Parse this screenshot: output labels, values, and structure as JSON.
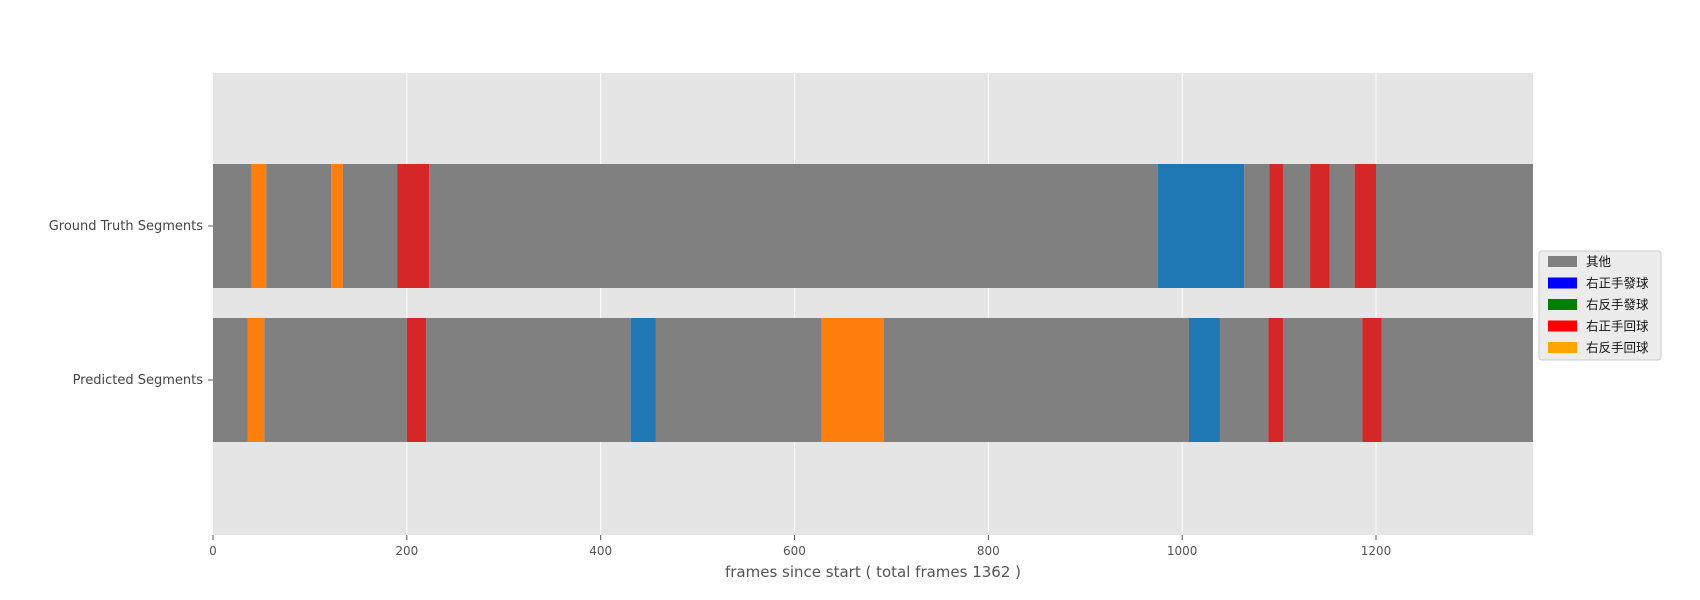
{
  "chart_data": {
    "type": "bar",
    "subtype": "broken-barh-timeline",
    "xlabel": "frames since start ( total frames 1362 )",
    "ylabel": "",
    "xlim": [
      0,
      1362
    ],
    "x_ticks": [
      0,
      200,
      400,
      600,
      800,
      1000,
      1200
    ],
    "grid": true,
    "legend_position": "center-right outside",
    "background_color": "#e5e5e5",
    "rows": [
      {
        "label": "Ground Truth Segments",
        "segments": [
          {
            "start": 0,
            "end": 40,
            "class": "其他"
          },
          {
            "start": 40,
            "end": 55,
            "class": "右反手回球"
          },
          {
            "start": 55,
            "end": 122,
            "class": "其他"
          },
          {
            "start": 122,
            "end": 134,
            "class": "右反手回球"
          },
          {
            "start": 134,
            "end": 190,
            "class": "其他"
          },
          {
            "start": 190,
            "end": 223,
            "class": "右正手回球"
          },
          {
            "start": 223,
            "end": 975,
            "class": "其他"
          },
          {
            "start": 975,
            "end": 1064,
            "class": "右正手發球"
          },
          {
            "start": 1064,
            "end": 1090,
            "class": "其他"
          },
          {
            "start": 1090,
            "end": 1104,
            "class": "右正手回球"
          },
          {
            "start": 1104,
            "end": 1132,
            "class": "其他"
          },
          {
            "start": 1132,
            "end": 1152,
            "class": "右正手回球"
          },
          {
            "start": 1152,
            "end": 1178,
            "class": "其他"
          },
          {
            "start": 1178,
            "end": 1200,
            "class": "右正手回球"
          },
          {
            "start": 1200,
            "end": 1362,
            "class": "其他"
          }
        ]
      },
      {
        "label": "Predicted Segments",
        "segments": [
          {
            "start": 0,
            "end": 36,
            "class": "其他"
          },
          {
            "start": 36,
            "end": 53,
            "class": "右反手回球"
          },
          {
            "start": 53,
            "end": 200,
            "class": "其他"
          },
          {
            "start": 200,
            "end": 220,
            "class": "右正手回球"
          },
          {
            "start": 220,
            "end": 431,
            "class": "其他"
          },
          {
            "start": 431,
            "end": 457,
            "class": "右正手發球"
          },
          {
            "start": 457,
            "end": 628,
            "class": "其他"
          },
          {
            "start": 628,
            "end": 692,
            "class": "右反手回球"
          },
          {
            "start": 692,
            "end": 1007,
            "class": "其他"
          },
          {
            "start": 1007,
            "end": 1039,
            "class": "右正手發球"
          },
          {
            "start": 1039,
            "end": 1089,
            "class": "其他"
          },
          {
            "start": 1089,
            "end": 1104,
            "class": "右正手回球"
          },
          {
            "start": 1104,
            "end": 1186,
            "class": "其他"
          },
          {
            "start": 1186,
            "end": 1206,
            "class": "右正手回球"
          },
          {
            "start": 1206,
            "end": 1362,
            "class": "其他"
          }
        ]
      }
    ],
    "segment_colors": {
      "其他": "#808080",
      "右正手發球": "#1f77b4",
      "右反手發球": "#2ca02c",
      "右正手回球": "#d62728",
      "右反手回球": "#ff7f0e"
    },
    "legend": [
      {
        "label": "其他",
        "color": "#808080"
      },
      {
        "label": "右正手發球",
        "color": "#0000ff"
      },
      {
        "label": "右反手發球",
        "color": "#008000"
      },
      {
        "label": "右正手回球",
        "color": "#ff0000"
      },
      {
        "label": "右反手回球",
        "color": "#ffa500"
      }
    ]
  }
}
